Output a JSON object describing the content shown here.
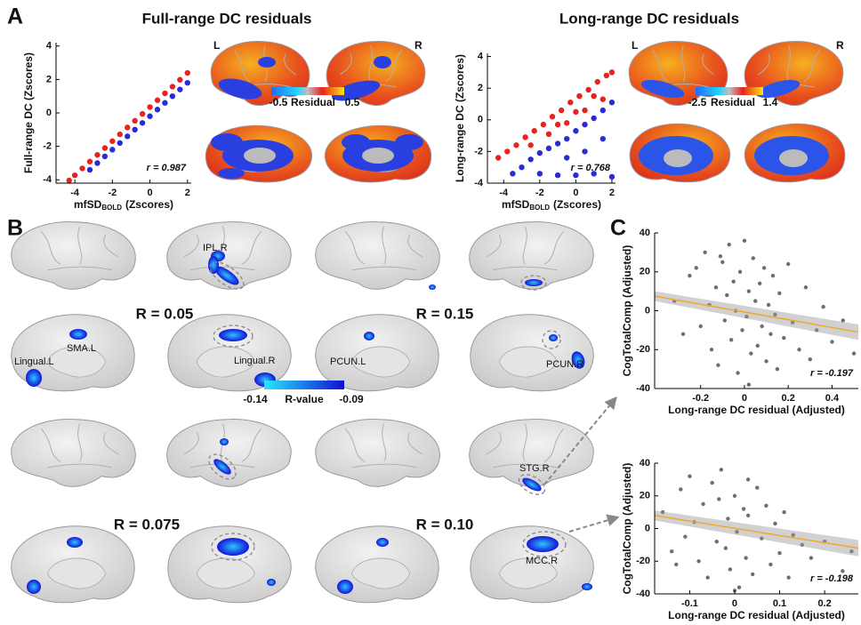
{
  "panel_labels": [
    "A",
    "B",
    "C"
  ],
  "panel_a": {
    "titles": [
      "Full-range DC residuals",
      "Long-range DC residuals"
    ],
    "hemisphere_labels": [
      "L",
      "R"
    ],
    "colorbars": [
      {
        "min": -0.5,
        "label": "Residual",
        "max": 0.5
      },
      {
        "min": -2.5,
        "label": "Residual",
        "max": 1.4
      }
    ]
  },
  "panel_b": {
    "thresholds": [
      "R = 0.05",
      "R = 0.15",
      "R = 0.075",
      "R = 0.10"
    ],
    "regions": [
      "IPL.R",
      "SMA.L",
      "Lingual.L",
      "Lingual.R",
      "PCUN.L",
      "PCUN.R",
      "STG.R",
      "MCC.R"
    ],
    "colorbar": {
      "min": -0.14,
      "label": "R-value",
      "max": -0.09
    }
  },
  "chart_data": [
    {
      "type": "scatter",
      "ylabel": "Full-range DC (Zscores)",
      "xlabel": "mfSD",
      "xlabel_subscript": "BOLD",
      "xlabel_unit": "(Zscores)",
      "annotation": "r = 0.987",
      "xlim": [
        -5,
        2.2
      ],
      "ylim": [
        -4.2,
        4.2
      ],
      "xticks": [
        -4,
        -2,
        0,
        2
      ],
      "yticks": [
        -4,
        -2,
        0,
        2,
        4
      ],
      "series": [
        {
          "color": "#e8231e",
          "x": [
            -4.3,
            -4,
            -3.6,
            -3.2,
            -2.8,
            -2.4,
            -2,
            -1.6,
            -1.2,
            -0.8,
            -0.4,
            0,
            0.4,
            0.8,
            1.2,
            1.6,
            2
          ],
          "values": [
            -4.04,
            -3.73,
            -3.32,
            -2.91,
            -2.51,
            -2.1,
            -1.69,
            -1.28,
            -0.87,
            -0.47,
            -0.06,
            0.35,
            0.76,
            1.17,
            1.57,
            1.98,
            2.39
          ]
        },
        {
          "color": "#2a2ad8",
          "x": [
            -3.2,
            -2.8,
            -2.4,
            -2,
            -1.6,
            -1.2,
            -0.8,
            -0.4,
            0,
            0.4,
            0.8,
            1.2,
            1.6,
            2
          ],
          "values": [
            -3.4,
            -3,
            -2.6,
            -2.2,
            -1.8,
            -1.4,
            -1,
            -0.6,
            -0.2,
            0.2,
            0.6,
            1,
            1.4,
            1.8
          ]
        }
      ]
    },
    {
      "type": "scatter",
      "ylabel": "Long-range DC (Zscores)",
      "xlabel": "mfSD",
      "xlabel_subscript": "BOLD",
      "xlabel_unit": "(Zscores)",
      "annotation": "r = 0.768",
      "xlim": [
        -4.9,
        2.2
      ],
      "ylim": [
        -4,
        4.2
      ],
      "xticks": [
        -4,
        -2,
        0,
        2
      ],
      "yticks": [
        -4,
        -2,
        0,
        2,
        4
      ],
      "series": [
        {
          "color": "#e8231e",
          "x": [
            -4.3,
            -3.8,
            -3.3,
            -2.8,
            -2.3,
            -1.8,
            -1.3,
            -0.8,
            -0.3,
            0.2,
            0.7,
            1.2,
            1.7,
            2,
            -2.5,
            -1.5,
            -0.5,
            0.5,
            1.5,
            -1,
            0,
            1
          ],
          "values": [
            -2.4,
            -2,
            -1.6,
            -1.1,
            -0.7,
            -0.3,
            0.2,
            0.6,
            1.1,
            1.5,
            1.9,
            2.4,
            2.8,
            3,
            -1.6,
            -0.9,
            -0.2,
            0.6,
            1.3,
            -0.3,
            0.5,
            1.5
          ]
        },
        {
          "color": "#2a2ad8",
          "x": [
            -3.5,
            -3,
            -2.5,
            -2,
            -1.5,
            -1,
            -0.5,
            0,
            0.5,
            1,
            1.5,
            2,
            -2,
            -1,
            0,
            1,
            2,
            -0.5,
            0.5,
            1.5
          ],
          "values": [
            -3.4,
            -3,
            -2.5,
            -2.1,
            -1.8,
            -1.5,
            -1.2,
            -0.7,
            -0.3,
            0.1,
            0.6,
            1.1,
            -3.4,
            -3.5,
            -3.5,
            -3.4,
            -3.6,
            -2.4,
            -2,
            -1.2
          ]
        }
      ]
    },
    {
      "type": "scatter",
      "ylabel": "CogTotalComp (Adjusted)",
      "xlabel": "Long-range DC residual (Adjusted)",
      "annotation": "r = -0.197",
      "xlim": [
        -0.41,
        0.52
      ],
      "ylim": [
        -40,
        40
      ],
      "xticks": [
        -0.2,
        0,
        0.2,
        0.4
      ],
      "yticks": [
        -40,
        -20,
        0,
        20,
        40
      ],
      "series": [
        {
          "color": "#6e6e6e",
          "x": [
            -0.32,
            -0.28,
            -0.25,
            -0.22,
            -0.2,
            -0.18,
            -0.16,
            -0.15,
            -0.13,
            -0.12,
            -0.1,
            -0.09,
            -0.08,
            -0.07,
            -0.06,
            -0.05,
            -0.04,
            -0.03,
            -0.02,
            -0.01,
            0,
            0.01,
            0.02,
            0.03,
            0.04,
            0.05,
            0.06,
            0.07,
            0.08,
            0.09,
            0.1,
            0.11,
            0.12,
            0.13,
            0.14,
            0.15,
            0.16,
            0.18,
            0.2,
            0.22,
            0.25,
            0.28,
            0.3,
            0.33,
            0.36,
            0.4,
            0.45,
            0.5,
            -0.11,
            0.02
          ],
          "values": [
            5,
            -12,
            18,
            22,
            -8,
            30,
            3,
            -20,
            12,
            -28,
            25,
            -5,
            8,
            34,
            -15,
            15,
            0,
            -32,
            20,
            -10,
            36,
            -3,
            10,
            -22,
            27,
            5,
            -18,
            14,
            -8,
            22,
            -26,
            3,
            -12,
            18,
            -2,
            -30,
            9,
            -14,
            24,
            -6,
            -20,
            12,
            -25,
            -10,
            2,
            -16,
            -5,
            -22,
            28,
            -38
          ]
        }
      ],
      "fit": {
        "color": "#f0a830",
        "x": [
          -0.41,
          0.52
        ],
        "values": [
          7.5,
          -11
        ],
        "lower": [
          5,
          -15
        ],
        "upper": [
          10,
          -7
        ]
      }
    },
    {
      "type": "scatter",
      "ylabel": "CogTotalComp (Adjusted)",
      "xlabel": "Long-range DC residual (Adjusted)",
      "annotation": "r = -0.198",
      "xlim": [
        -0.178,
        0.275
      ],
      "ylim": [
        -40,
        40
      ],
      "xticks": [
        -0.1,
        0,
        0.1,
        0.2
      ],
      "yticks": [
        -40,
        -20,
        0,
        20,
        40
      ],
      "series": [
        {
          "color": "#6e6e6e",
          "x": [
            -0.16,
            -0.14,
            -0.12,
            -0.11,
            -0.1,
            -0.09,
            -0.08,
            -0.07,
            -0.06,
            -0.05,
            -0.04,
            -0.035,
            -0.03,
            -0.02,
            -0.015,
            -0.01,
            0,
            0.005,
            0.01,
            0.02,
            0.025,
            0.03,
            0.04,
            0.05,
            0.06,
            0.07,
            0.08,
            0.09,
            0.1,
            0.11,
            0.12,
            0.13,
            0.15,
            0.17,
            0.2,
            0.24,
            0.26,
            -0.13,
            0,
            0.03
          ],
          "values": [
            10,
            -14,
            24,
            -5,
            32,
            4,
            -20,
            15,
            -30,
            28,
            -8,
            18,
            36,
            -12,
            6,
            -25,
            20,
            -2,
            -36,
            12,
            -18,
            8,
            -28,
            25,
            -6,
            14,
            -22,
            3,
            -15,
            10,
            -30,
            -4,
            -10,
            -18,
            -8,
            -26,
            -14,
            -22,
            -38,
            30
          ]
        }
      ],
      "fit": {
        "color": "#f0a830",
        "x": [
          -0.178,
          0.275
        ],
        "values": [
          8,
          -12
        ],
        "lower": [
          5,
          -17
        ],
        "upper": [
          11,
          -7
        ]
      }
    }
  ]
}
